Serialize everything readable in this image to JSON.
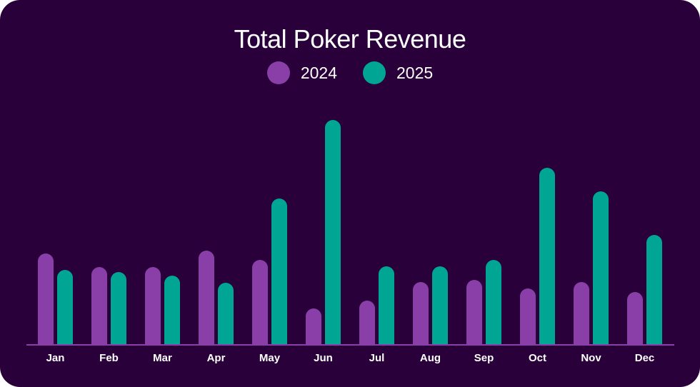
{
  "colors": {
    "background": "#29003a",
    "series_2024": "#8a3fa8",
    "series_2025": "#00a693",
    "baseline": "#8a3fa8"
  },
  "chart_data": {
    "type": "bar",
    "title": "Total Poker Revenue",
    "xlabel": "",
    "ylabel": "",
    "categories": [
      "Jan",
      "Feb",
      "Mar",
      "Apr",
      "May",
      "Jun",
      "Jul",
      "Aug",
      "Sep",
      "Oct",
      "Nov",
      "Dec"
    ],
    "series": [
      {
        "name": "2024",
        "values": [
          127,
          108,
          108,
          131,
          118,
          50,
          61,
          87,
          90,
          78,
          87,
          73
        ]
      },
      {
        "name": "2025",
        "values": [
          104,
          101,
          96,
          86,
          204,
          314,
          109,
          109,
          118,
          247,
          214,
          153
        ]
      }
    ],
    "ylim": [
      0,
      330
    ],
    "grid": false,
    "legend_position": "top-center"
  }
}
